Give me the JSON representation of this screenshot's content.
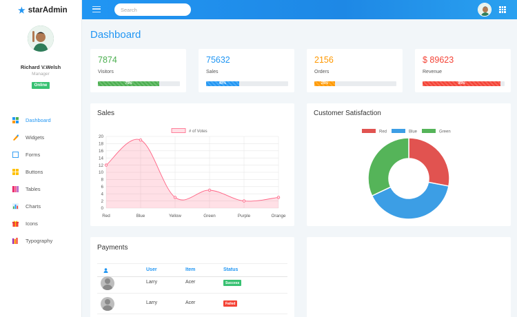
{
  "brand": {
    "name": "starAdmin"
  },
  "profile": {
    "name": "Richard V.Welsh",
    "role": "Manager",
    "status": "Online"
  },
  "nav": [
    {
      "label": "Dashboard",
      "icon": "dashboard-icon",
      "color": "#2196f3"
    },
    {
      "label": "Widgets",
      "icon": "widgets-icon",
      "color": "#ff9800"
    },
    {
      "label": "Forms",
      "icon": "forms-icon",
      "color": "#2196f3"
    },
    {
      "label": "Buttons",
      "icon": "buttons-icon",
      "color": "#ffc107"
    },
    {
      "label": "Tables",
      "icon": "tables-icon",
      "color": "#e91e63"
    },
    {
      "label": "Charts",
      "icon": "charts-icon",
      "color": "#4caf50"
    },
    {
      "label": "Icons",
      "icon": "icons-icon",
      "color": "#f44336"
    },
    {
      "label": "Typography",
      "icon": "typography-icon",
      "color": "#9c27b0"
    }
  ],
  "topbar": {
    "search_placeholder": "Search"
  },
  "page": {
    "title": "Dashboard"
  },
  "stats": [
    {
      "value": "7874",
      "label": "Visitors",
      "progress": "75%",
      "color": "#4caf50"
    },
    {
      "value": "75632",
      "label": "Sales",
      "progress": "40%",
      "color": "#2196f3"
    },
    {
      "value": "2156",
      "label": "Orders",
      "progress": "25%",
      "color": "#ff9800"
    },
    {
      "value": "$ 89623",
      "label": "Revenue",
      "progress": "95%",
      "color": "#f44336"
    }
  ],
  "sales": {
    "title": "Sales"
  },
  "satisfaction": {
    "title": "Customer Satisfaction"
  },
  "payments": {
    "title": "Payments",
    "columns": {
      "user": "User",
      "item": "Item",
      "status": "Status"
    },
    "rows": [
      {
        "user": "Larry",
        "item": "Acer",
        "status": "Success",
        "status_color": "#38c172"
      },
      {
        "user": "Larry",
        "item": "Acer",
        "status": "Failed",
        "status_color": "#f44336"
      }
    ]
  },
  "chart_data": [
    {
      "type": "area",
      "categories": [
        "Red",
        "Blue",
        "Yellow",
        "Green",
        "Purple",
        "Orange"
      ],
      "series": [
        {
          "name": "# of Votes",
          "values": [
            12,
            19,
            3,
            5,
            2,
            3
          ],
          "color": "#ff6384"
        }
      ],
      "ylim": [
        0,
        20
      ],
      "yticks": [
        0,
        2,
        4,
        6,
        8,
        10,
        12,
        14,
        16,
        18,
        20
      ],
      "grid": true,
      "legend": "top"
    },
    {
      "type": "pie",
      "categories": [
        "Red",
        "Blue",
        "Green"
      ],
      "values": [
        28,
        40,
        32
      ],
      "colors": [
        "#e15350",
        "#3c9ee5",
        "#55b459"
      ],
      "legend": "top"
    }
  ]
}
